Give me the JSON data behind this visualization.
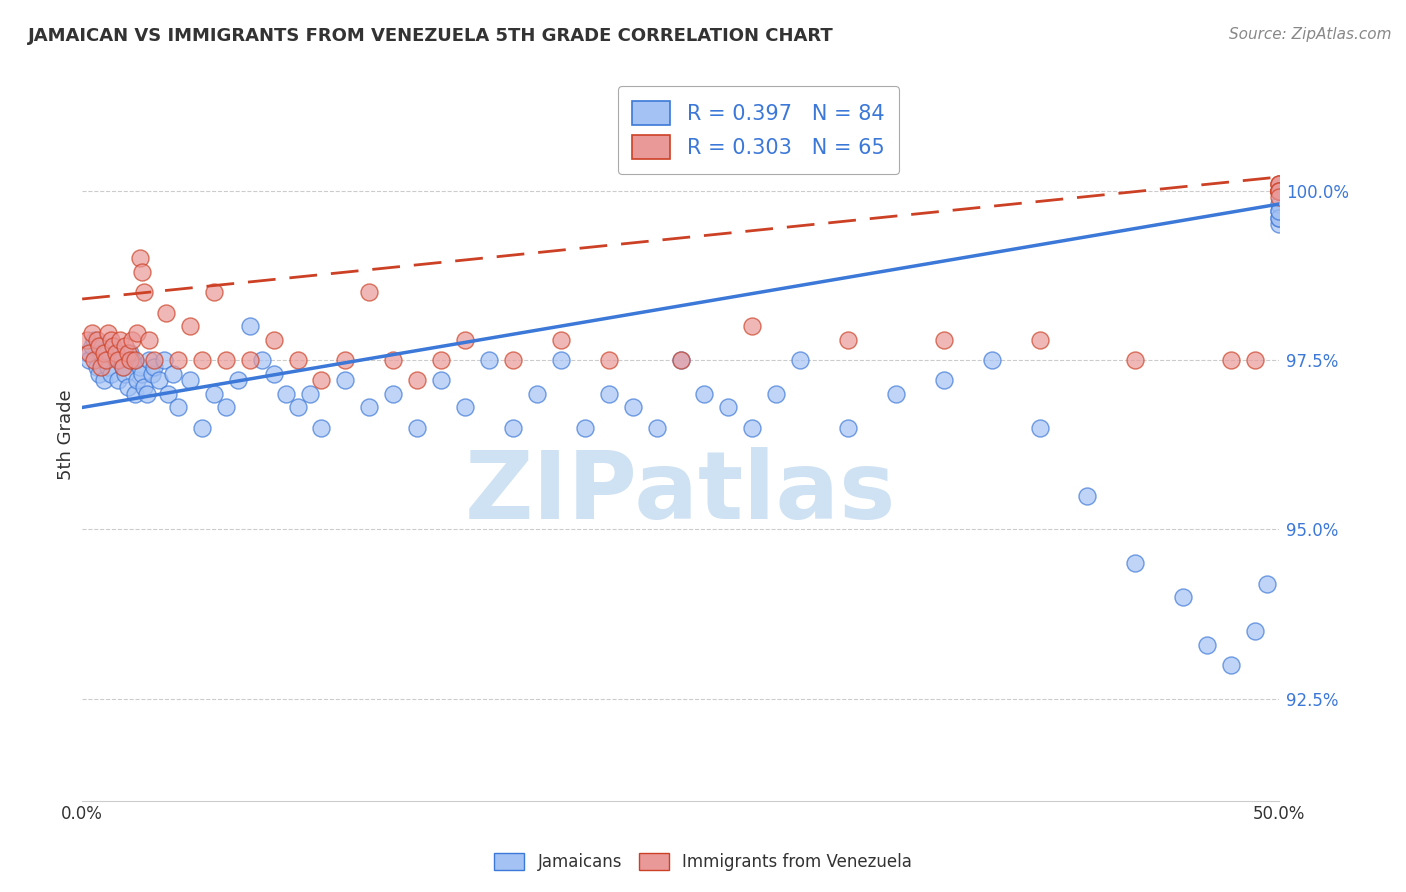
{
  "title": "JAMAICAN VS IMMIGRANTS FROM VENEZUELA 5TH GRADE CORRELATION CHART",
  "source": "Source: ZipAtlas.com",
  "ylabel": "5th Grade",
  "legend_label1": "Jamaicans",
  "legend_label2": "Immigrants from Venezuela",
  "R1": 0.397,
  "N1": 84,
  "R2": 0.303,
  "N2": 65,
  "color_blue_fill": "#a4c2f4",
  "color_blue_edge": "#3c78d8",
  "color_pink_fill": "#ea9999",
  "color_pink_edge": "#cc4125",
  "color_blue_line": "#3c78d8",
  "color_pink_line": "#cc4125",
  "color_blue_text": "#3c78d8",
  "watermark_color": "#cfe2f3",
  "xlim": [
    0.0,
    50.0
  ],
  "ylim": [
    91.0,
    101.8
  ],
  "ytick_values": [
    92.5,
    95.0,
    97.5,
    100.0
  ],
  "ytick_labels": [
    "92.5%",
    "95.0%",
    "97.5%",
    "100.0%"
  ],
  "blue_x": [
    0.2,
    0.3,
    0.4,
    0.5,
    0.6,
    0.7,
    0.8,
    0.9,
    1.0,
    1.1,
    1.2,
    1.3,
    1.4,
    1.5,
    1.6,
    1.7,
    1.8,
    1.9,
    2.0,
    2.1,
    2.2,
    2.3,
    2.4,
    2.5,
    2.6,
    2.7,
    2.8,
    2.9,
    3.0,
    3.2,
    3.4,
    3.6,
    3.8,
    4.0,
    4.5,
    5.0,
    5.5,
    6.0,
    6.5,
    7.0,
    7.5,
    8.0,
    8.5,
    9.0,
    9.5,
    10.0,
    11.0,
    12.0,
    13.0,
    14.0,
    15.0,
    16.0,
    17.0,
    18.0,
    19.0,
    20.0,
    21.0,
    22.0,
    23.0,
    24.0,
    25.0,
    26.0,
    27.0,
    28.0,
    29.0,
    30.0,
    32.0,
    34.0,
    36.0,
    38.0,
    40.0,
    42.0,
    44.0,
    46.0,
    47.0,
    48.0,
    49.0,
    49.5,
    50.0,
    50.0,
    50.0,
    50.0,
    50.0,
    50.0
  ],
  "blue_y": [
    97.6,
    97.5,
    97.7,
    97.8,
    97.4,
    97.3,
    97.6,
    97.2,
    97.5,
    97.4,
    97.3,
    97.7,
    97.6,
    97.2,
    97.5,
    97.4,
    97.3,
    97.1,
    97.6,
    97.5,
    97.0,
    97.2,
    97.4,
    97.3,
    97.1,
    97.0,
    97.5,
    97.3,
    97.4,
    97.2,
    97.5,
    97.0,
    97.3,
    96.8,
    97.2,
    96.5,
    97.0,
    96.8,
    97.2,
    98.0,
    97.5,
    97.3,
    97.0,
    96.8,
    97.0,
    96.5,
    97.2,
    96.8,
    97.0,
    96.5,
    97.2,
    96.8,
    97.5,
    96.5,
    97.0,
    97.5,
    96.5,
    97.0,
    96.8,
    96.5,
    97.5,
    97.0,
    96.8,
    96.5,
    97.0,
    97.5,
    96.5,
    97.0,
    97.2,
    97.5,
    96.5,
    95.5,
    94.5,
    94.0,
    93.3,
    93.0,
    93.5,
    94.2,
    99.5,
    99.6,
    99.7,
    99.8,
    99.6,
    99.7
  ],
  "pink_x": [
    0.2,
    0.3,
    0.4,
    0.5,
    0.6,
    0.7,
    0.8,
    0.9,
    1.0,
    1.1,
    1.2,
    1.3,
    1.4,
    1.5,
    1.6,
    1.7,
    1.8,
    1.9,
    2.0,
    2.1,
    2.2,
    2.3,
    2.4,
    2.5,
    2.6,
    2.8,
    3.0,
    3.5,
    4.0,
    4.5,
    5.0,
    5.5,
    6.0,
    7.0,
    8.0,
    9.0,
    10.0,
    11.0,
    12.0,
    13.0,
    14.0,
    15.0,
    16.0,
    18.0,
    20.0,
    22.0,
    25.0,
    28.0,
    32.0,
    36.0,
    40.0,
    44.0,
    48.0,
    49.0,
    50.0,
    50.0,
    50.0,
    50.0,
    50.0,
    50.0,
    50.0,
    50.0,
    50.0,
    50.0,
    50.0
  ],
  "pink_y": [
    97.8,
    97.6,
    97.9,
    97.5,
    97.8,
    97.7,
    97.4,
    97.6,
    97.5,
    97.9,
    97.8,
    97.7,
    97.6,
    97.5,
    97.8,
    97.4,
    97.7,
    97.6,
    97.5,
    97.8,
    97.5,
    97.9,
    99.0,
    98.8,
    98.5,
    97.8,
    97.5,
    98.2,
    97.5,
    98.0,
    97.5,
    98.5,
    97.5,
    97.5,
    97.8,
    97.5,
    97.2,
    97.5,
    98.5,
    97.5,
    97.2,
    97.5,
    97.8,
    97.5,
    97.8,
    97.5,
    97.5,
    98.0,
    97.8,
    97.8,
    97.8,
    97.5,
    97.5,
    97.5,
    100.0,
    100.1,
    100.0,
    100.0,
    100.1,
    100.0,
    100.0,
    100.1,
    100.0,
    100.0,
    99.9
  ]
}
